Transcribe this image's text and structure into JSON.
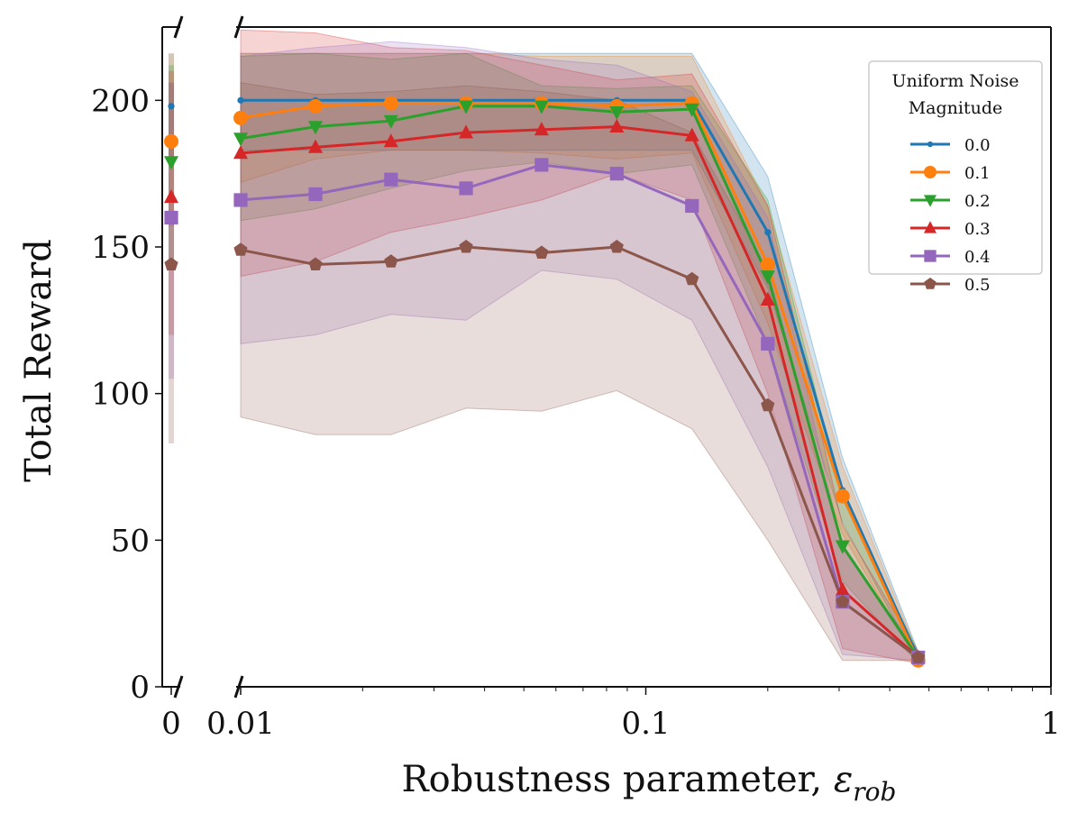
{
  "chart_data": {
    "type": "line",
    "xscale": "log",
    "title": "",
    "xlabel": "Robustness parameter, ",
    "xlabel_symbol": "ε",
    "xlabel_subscript": "rob",
    "ylabel": "Total Reward",
    "ylim": [
      0,
      225
    ],
    "xlim_log": [
      0.01,
      1
    ],
    "y_ticks": [
      0,
      50,
      100,
      150,
      200
    ],
    "y_tick_labels": [
      "0",
      "50",
      "100",
      "150",
      "200"
    ],
    "x_tick_labels": [
      "0",
      "0.01",
      "0.1",
      "1"
    ],
    "x_tick_values": [
      0,
      0.01,
      0.1,
      1
    ],
    "x": [
      0.01,
      0.0153,
      0.0235,
      0.036,
      0.0553,
      0.0848,
      0.13,
      0.2,
      0.306,
      0.47
    ],
    "legend": {
      "title_line1": "Uniform Noise",
      "title_line2": "Magnitude",
      "position": "top-right"
    },
    "series": [
      {
        "name": "0.0",
        "color": "#1f77b4",
        "marker": "dot",
        "at_zero": 198,
        "zero_band": [
          180,
          216
        ],
        "values": [
          200,
          200,
          200,
          200,
          200,
          200,
          200,
          155,
          67,
          10
        ],
        "lower": [
          183,
          183,
          183,
          183,
          183,
          183,
          183,
          136,
          56,
          8
        ],
        "upper": [
          216,
          216,
          216,
          216,
          216,
          216,
          216,
          174,
          78,
          12
        ]
      },
      {
        "name": "0.1",
        "color": "#ff7f0e",
        "marker": "circle",
        "at_zero": 186,
        "zero_band": [
          157,
          216
        ],
        "values": [
          194,
          198,
          199,
          199,
          199,
          198,
          199,
          144,
          65,
          9
        ],
        "lower": [
          172,
          180,
          183,
          183,
          182,
          180,
          182,
          124,
          52,
          8
        ],
        "upper": [
          216,
          216,
          216,
          216,
          215,
          215,
          215,
          164,
          75,
          11
        ]
      },
      {
        "name": "0.2",
        "color": "#2ca02c",
        "marker": "triangle-down",
        "at_zero": 179,
        "zero_band": [
          145,
          212
        ],
        "values": [
          187,
          191,
          193,
          198,
          198,
          196,
          197,
          140,
          48,
          10
        ],
        "lower": [
          159,
          163,
          170,
          176,
          179,
          175,
          178,
          117,
          36,
          8
        ],
        "upper": [
          215,
          216,
          214,
          216,
          205,
          204,
          205,
          166,
          64,
          12
        ]
      },
      {
        "name": "0.3",
        "color": "#d62728",
        "marker": "triangle-up",
        "at_zero": 167,
        "zero_band": [
          120,
          210
        ],
        "values": [
          182,
          184,
          186,
          189,
          190,
          191,
          188,
          132,
          33,
          10
        ],
        "lower": [
          140,
          145,
          155,
          160,
          166,
          175,
          166,
          100,
          13,
          8
        ],
        "upper": [
          224,
          223,
          218,
          217,
          212,
          207,
          209,
          164,
          55,
          12
        ]
      },
      {
        "name": "0.4",
        "color": "#9467bd",
        "marker": "square",
        "at_zero": 160,
        "zero_band": [
          105,
          206
        ],
        "values": [
          166,
          168,
          173,
          170,
          178,
          175,
          164,
          117,
          29,
          10
        ],
        "lower": [
          117,
          120,
          127,
          125,
          142,
          139,
          125,
          75,
          11,
          9
        ],
        "upper": [
          215,
          218,
          220,
          218,
          214,
          212,
          203,
          160,
          47,
          12
        ]
      },
      {
        "name": "0.5",
        "color": "#8c564b",
        "marker": "pentagon",
        "at_zero": 144,
        "zero_band": [
          83,
          206
        ],
        "values": [
          149,
          144,
          145,
          150,
          148,
          150,
          139,
          96,
          29,
          10
        ],
        "lower": [
          92,
          86,
          86,
          95,
          94,
          101,
          88,
          50,
          9,
          9
        ],
        "upper": [
          206,
          202,
          203,
          205,
          203,
          200,
          189,
          142,
          48,
          11
        ]
      }
    ]
  }
}
